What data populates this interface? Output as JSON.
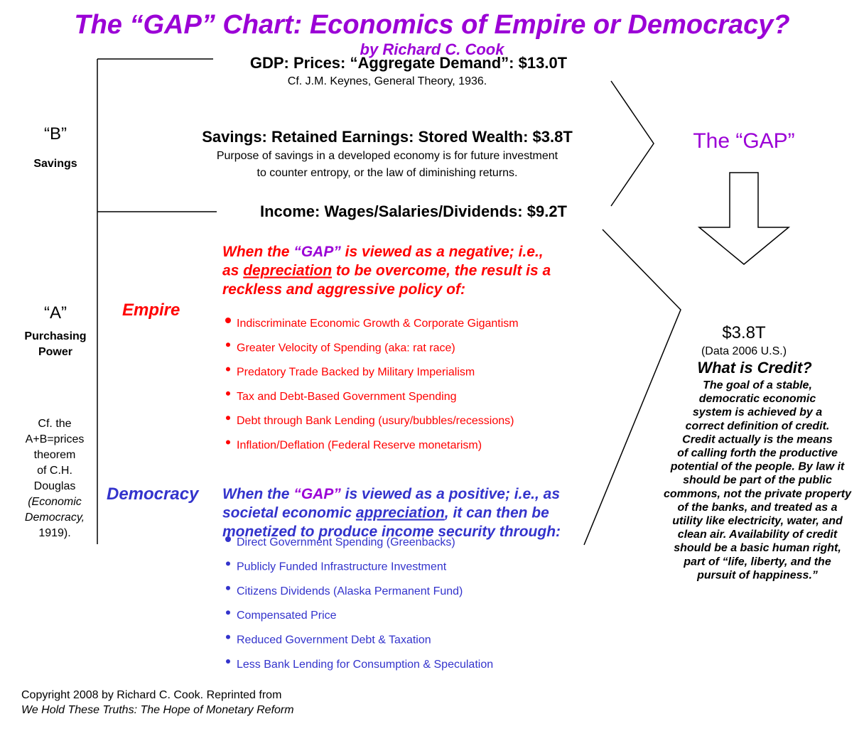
{
  "title": "The “GAP” Chart: Economics of Empire or Democracy?",
  "subtitle": "by Richard C. Cook",
  "left": {
    "b_label": "“B”",
    "b_caption": "Savings",
    "a_label": "“A”",
    "a_caption": [
      "Purchasing",
      "Power"
    ],
    "note": [
      {
        "text": "Cf. the"
      },
      {
        "text": "A+B=prices"
      },
      {
        "text": "theorem"
      },
      {
        "text": "of C.H."
      },
      {
        "text": "Douglas"
      },
      {
        "text": "(Economic",
        "emphasis": "italic"
      },
      {
        "text": "Democracy,",
        "emphasis": "italic"
      },
      {
        "text": "1919)."
      }
    ]
  },
  "top": {
    "gdp": "GDP: Prices: “Aggregate Demand”: $13.0T",
    "gdp_note": "Cf. J.M. Keynes, General Theory, 1936.",
    "savings": "Savings: Retained Earnings: Stored Wealth: $3.8T",
    "savings_note": [
      "Purpose of savings in a developed economy is for future investment",
      "to counter entropy, or the law of diminishing returns."
    ],
    "income": "Income: Wages/Salaries/Dividends: $9.2T"
  },
  "gap": {
    "label": "The “GAP”",
    "amount": "$3.8T",
    "amount_note": "(Data 2006 U.S.)"
  },
  "empire": {
    "label": "Empire",
    "intro": [
      [
        {
          "text": "When the "
        },
        {
          "text": "“GAP”",
          "emphasis": "gap"
        },
        {
          "text": " is viewed as a negative; i.e.,"
        }
      ],
      [
        {
          "text": "as "
        },
        {
          "text": "depreciation",
          "emphasis": "underline"
        },
        {
          "text": " to be overcome, the result is a"
        }
      ],
      [
        {
          "text": "reckless and aggressive policy of:"
        }
      ]
    ],
    "items": [
      "Indiscriminate Economic Growth & Corporate Gigantism",
      "Greater Velocity of Spending (aka: rat race)",
      "Predatory Trade Backed by Military Imperialism",
      "Tax and Debt-Based Government Spending",
      "Debt through Bank Lending (usury/bubbles/recessions)",
      "Inflation/Deflation (Federal Reserve monetarism)"
    ]
  },
  "democracy": {
    "label": "Democracy",
    "intro": [
      [
        {
          "text": "When the "
        },
        {
          "text": "“GAP”",
          "emphasis": "gap"
        },
        {
          "text": " is viewed as a positive; i.e., as"
        }
      ],
      [
        {
          "text": "societal economic "
        },
        {
          "text": "appreciation",
          "emphasis": "underline"
        },
        {
          "text": ", it can then be"
        }
      ],
      [
        {
          "text": "monetized to produce income security through:"
        }
      ]
    ],
    "items": [
      "Direct Government Spending (Greenbacks)",
      "Publicly Funded Infrastructure Investment",
      "Citizens Dividends (Alaska Permanent Fund)",
      "Compensated Price",
      "Reduced Government Debt & Taxation",
      "Less Bank Lending for Consumption & Speculation"
    ]
  },
  "credit": {
    "title": "What is Credit?",
    "body": [
      "The goal of a stable,",
      "democratic economic",
      "system is achieved by a",
      "correct definition of credit.",
      "Credit actually is the means",
      "of calling forth the productive",
      "potential of the people. By law it",
      "should be part of the public",
      "commons, not the private property",
      "of the banks, and treated as a",
      "utility like electricity, water, and",
      "clean air. Availability of credit",
      "should be a basic human right,",
      "part of “life, liberty, and the",
      "pursuit of happiness.”"
    ]
  },
  "copyright": {
    "line": "Copyright 2008 by Richard C. Cook. Reprinted from",
    "book": "We Hold These Truths: The Hope of Monetary Reform"
  }
}
